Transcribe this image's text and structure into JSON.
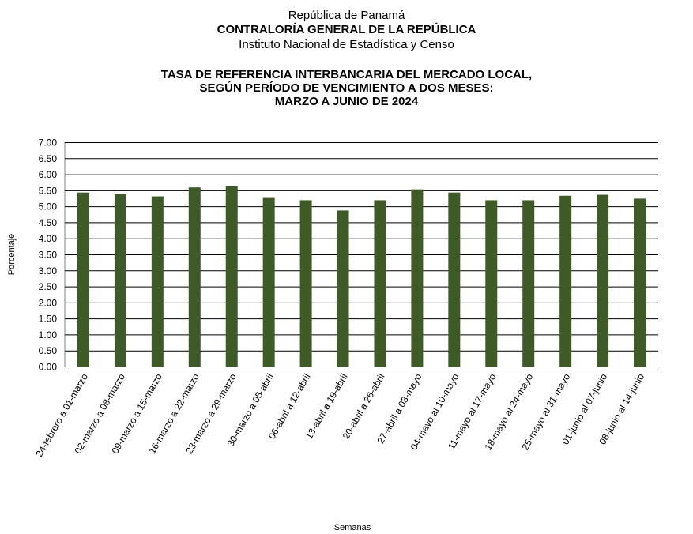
{
  "header": {
    "line1": "República de Panamá",
    "line2": "CONTRALORÍA GENERAL DE LA REPÚBLICA",
    "line3": "Instituto  Nacional de Estadística  y  Censo"
  },
  "chart_data": {
    "type": "bar",
    "title": [
      "TASA DE REFERENCIA INTERBANCARIA DEL MERCADO LOCAL,",
      "SEGÚN PERÍODO DE VENCIMIENTO A DOS MESES:",
      "MARZO  A  JUNIO DE 2024"
    ],
    "xlabel": "Semanas",
    "ylabel": "Porcentaje",
    "ylim": [
      0,
      7
    ],
    "yticks": [
      "0.00",
      "0.50",
      "1.00",
      "1.50",
      "2.00",
      "2.50",
      "3.00",
      "3.50",
      "4.00",
      "4.50",
      "5.00",
      "5.50",
      "6.00",
      "6.50",
      "7.00"
    ],
    "grid": true,
    "bar_color": "#3d5a27",
    "categories": [
      "24-febrero a 01-marzo",
      "02-marzo a 08-marzo",
      "09-marzo a 15-marzo",
      "16-marzo a 22-marzo",
      "23-marzo a 29-marzo",
      "30-marzo a 05-abril",
      "06-abril a 12-abril",
      "13-abril a 19-abril",
      "20-abril a 26-abril",
      "27-abril a 03-mayo",
      "04-mayo al 10-mayo",
      "11-mayo al 17-mayo",
      "18-mayo al 24-mayo",
      "25-mayo al 31-mayo",
      "01-junio al 07-junio",
      "08-junio al 14-junio"
    ],
    "values": [
      5.43,
      5.38,
      5.31,
      5.59,
      5.62,
      5.26,
      5.19,
      4.87,
      5.19,
      5.53,
      5.43,
      5.19,
      5.19,
      5.33,
      5.36,
      5.24
    ]
  }
}
